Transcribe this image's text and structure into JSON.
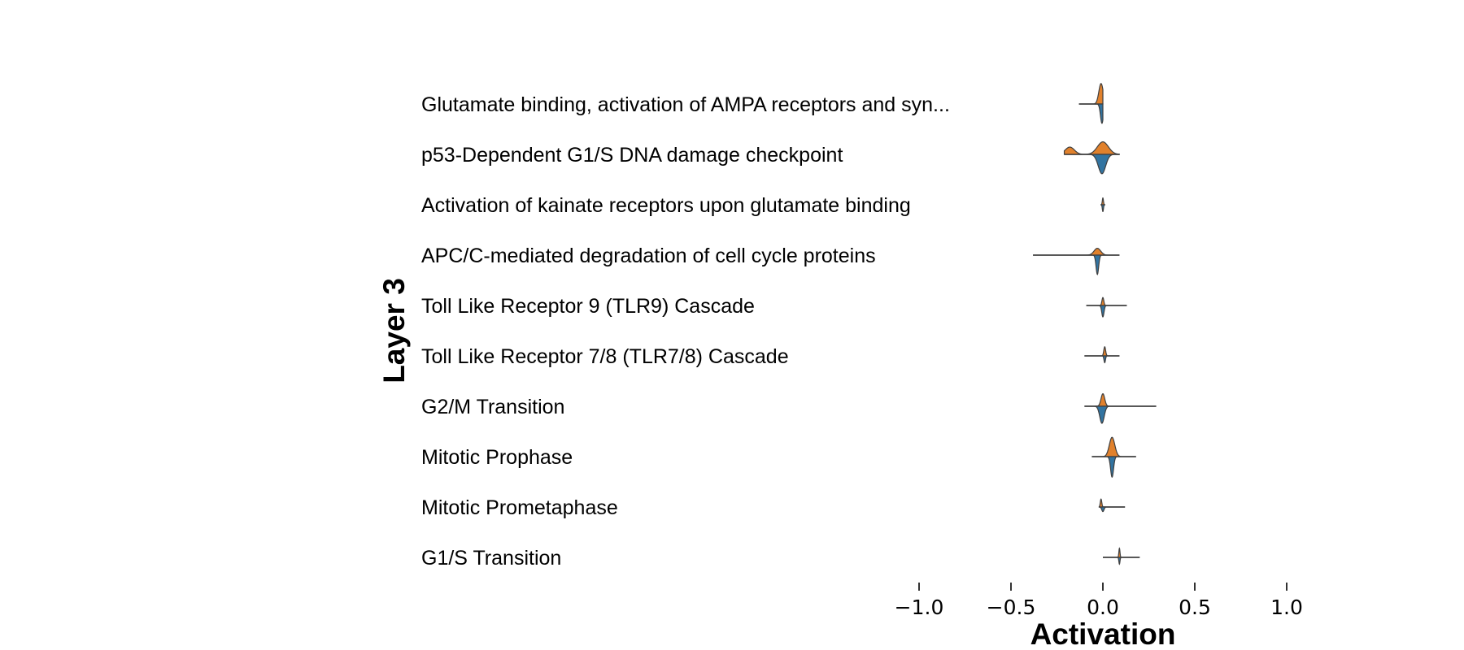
{
  "chart_data": {
    "type": "violin",
    "split": true,
    "title": "",
    "xlabel": "Activation",
    "ylabel": "Layer 3",
    "xlim": [
      -1.1,
      1.1
    ],
    "xticks": [
      -1.0,
      -0.5,
      0.0,
      0.5,
      1.0
    ],
    "xtick_labels": [
      "−1.0",
      "−0.5",
      "0.0",
      "0.5",
      "1.0"
    ],
    "grid": false,
    "colors": {
      "upper_half": "#e1812c",
      "lower_half": "#3274a1",
      "outline": "#3f3f3f"
    },
    "categories": [
      "Glutamate binding, activation of AMPA receptors and syn...",
      "p53-Dependent G1/S DNA damage checkpoint",
      "Activation of kainate receptors upon glutamate binding",
      "APC/C-mediated degradation of cell cycle proteins",
      "Toll Like Receptor 9 (TLR9) Cascade",
      "Toll Like Receptor 7/8 (TLR7/8) Cascade",
      "G2/M Transition",
      "Mitotic Prophase",
      "Mitotic Prometaphase",
      "G1/S Transition"
    ],
    "series": [
      {
        "half": "upper",
        "distributions": [
          {
            "range": [
              -0.13,
              0.0
            ],
            "peaks": [
              {
                "center": -0.01,
                "width": 0.012,
                "height": 0.9
              }
            ]
          },
          {
            "range": [
              -0.21,
              0.09
            ],
            "peaks": [
              {
                "center": -0.18,
                "width": 0.025,
                "height": 0.32
              },
              {
                "center": 0.0,
                "width": 0.03,
                "height": 0.55
              }
            ]
          },
          {
            "range": [
              -0.01,
              0.01
            ],
            "peaks": [
              {
                "center": 0.0,
                "width": 0.003,
                "height": 0.3
              }
            ]
          },
          {
            "range": [
              -0.38,
              0.09
            ],
            "peaks": [
              {
                "center": -0.03,
                "width": 0.018,
                "height": 0.3
              }
            ]
          },
          {
            "range": [
              -0.09,
              0.13
            ],
            "peaks": [
              {
                "center": 0.0,
                "width": 0.005,
                "height": 0.35
              }
            ]
          },
          {
            "range": [
              -0.1,
              0.09
            ],
            "peaks": [
              {
                "center": 0.01,
                "width": 0.005,
                "height": 0.4
              }
            ]
          },
          {
            "range": [
              -0.1,
              0.29
            ],
            "peaks": [
              {
                "center": 0.0,
                "width": 0.01,
                "height": 0.55
              }
            ]
          },
          {
            "range": [
              -0.06,
              0.18
            ],
            "peaks": [
              {
                "center": 0.05,
                "width": 0.015,
                "height": 0.85
              }
            ]
          },
          {
            "range": [
              -0.02,
              0.12
            ],
            "peaks": [
              {
                "center": -0.01,
                "width": 0.004,
                "height": 0.35
              }
            ]
          },
          {
            "range": [
              0.0,
              0.2
            ],
            "peaks": [
              {
                "center": 0.09,
                "width": 0.003,
                "height": 0.4
              }
            ]
          }
        ]
      },
      {
        "half": "lower",
        "distributions": [
          {
            "range": [
              -0.13,
              0.0
            ],
            "peaks": [
              {
                "center": -0.005,
                "width": 0.008,
                "height": 0.85
              }
            ]
          },
          {
            "range": [
              -0.21,
              0.09
            ],
            "peaks": [
              {
                "center": -0.005,
                "width": 0.02,
                "height": 0.85
              }
            ]
          },
          {
            "range": [
              -0.01,
              0.01
            ],
            "peaks": [
              {
                "center": 0.0,
                "width": 0.003,
                "height": 0.3
              }
            ]
          },
          {
            "range": [
              -0.38,
              0.09
            ],
            "peaks": [
              {
                "center": -0.03,
                "width": 0.007,
                "height": 0.85
              }
            ]
          },
          {
            "range": [
              -0.09,
              0.13
            ],
            "peaks": [
              {
                "center": 0.0,
                "width": 0.006,
                "height": 0.5
              }
            ]
          },
          {
            "range": [
              -0.1,
              0.09
            ],
            "peaks": [
              {
                "center": 0.01,
                "width": 0.004,
                "height": 0.3
              }
            ]
          },
          {
            "range": [
              -0.1,
              0.29
            ],
            "peaks": [
              {
                "center": -0.005,
                "width": 0.012,
                "height": 0.75
              }
            ]
          },
          {
            "range": [
              -0.06,
              0.18
            ],
            "peaks": [
              {
                "center": 0.05,
                "width": 0.008,
                "height": 0.9
              }
            ]
          },
          {
            "range": [
              -0.02,
              0.12
            ],
            "peaks": [
              {
                "center": 0.0,
                "width": 0.006,
                "height": 0.2
              }
            ]
          },
          {
            "range": [
              0.0,
              0.2
            ],
            "peaks": [
              {
                "center": 0.09,
                "width": 0.003,
                "height": 0.3
              }
            ]
          }
        ]
      }
    ]
  }
}
